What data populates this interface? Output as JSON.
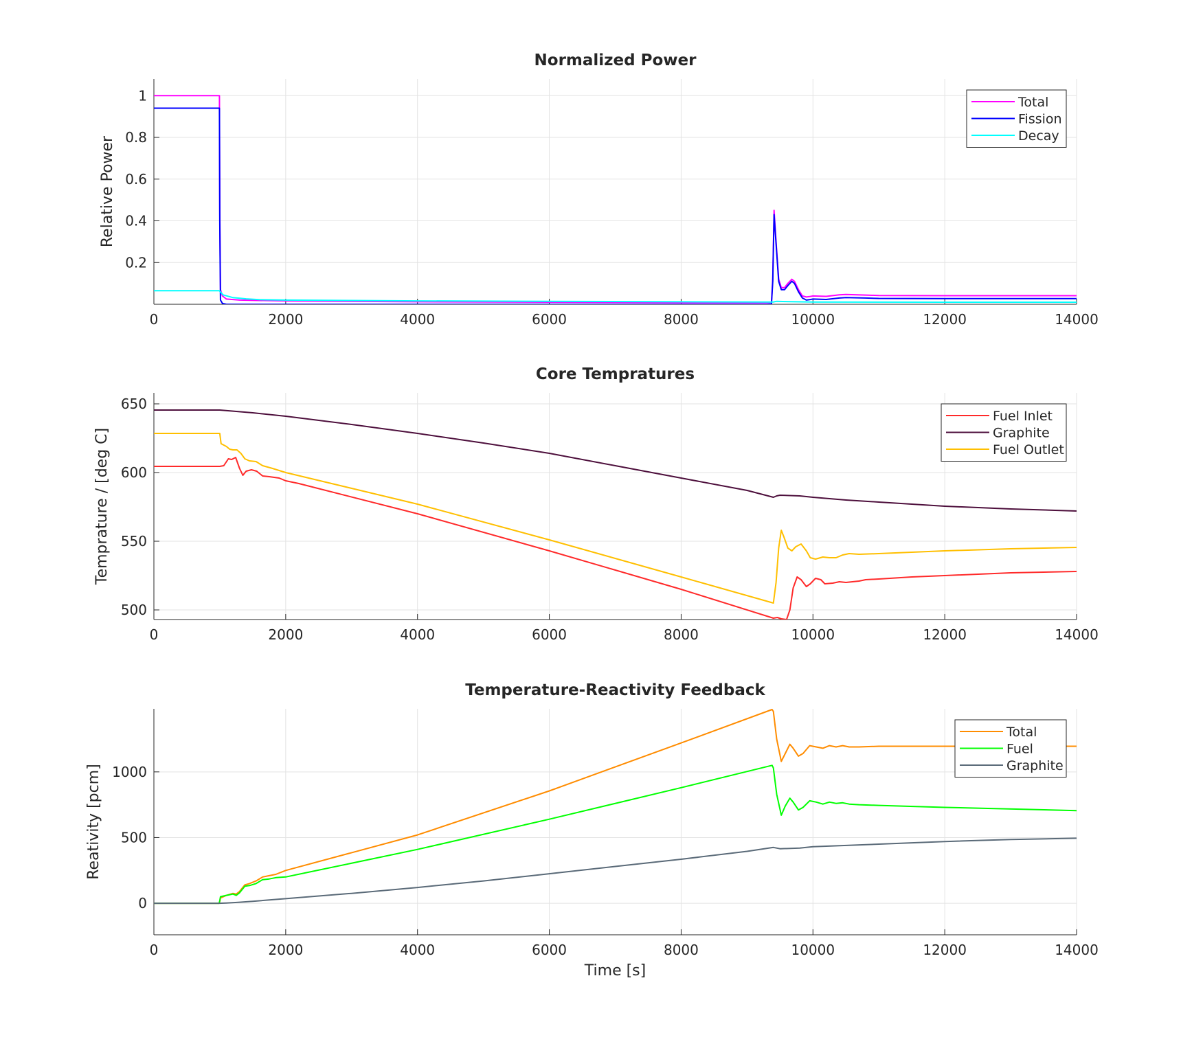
{
  "chart_data": [
    {
      "type": "line",
      "title": "Normalized Power",
      "xlabel": "",
      "ylabel": "Relative Power",
      "xlim": [
        0,
        14000
      ],
      "ylim": [
        0,
        1.08
      ],
      "xticks": [
        0,
        2000,
        4000,
        6000,
        8000,
        10000,
        12000,
        14000
      ],
      "yticks": [
        0.2,
        0.4,
        0.6,
        0.8,
        1
      ],
      "grid": true,
      "legend": "top-right",
      "series": [
        {
          "name": "Total",
          "color": "#ff00ff",
          "x": [
            0,
            995,
            1000,
            1010,
            1040,
            1100,
            1300,
            1600,
            2000,
            4000,
            6000,
            8000,
            9300,
            9370,
            9390,
            9410,
            9440,
            9480,
            9520,
            9570,
            9620,
            9680,
            9720,
            9780,
            9840,
            9900,
            9950,
            10000,
            10200,
            10400,
            10500,
            10800,
            11000,
            12000,
            13000,
            14000
          ],
          "y": [
            1.0,
            1.0,
            0.45,
            0.07,
            0.04,
            0.025,
            0.02,
            0.018,
            0.016,
            0.012,
            0.01,
            0.008,
            0.008,
            0.01,
            0.12,
            0.45,
            0.3,
            0.12,
            0.08,
            0.08,
            0.1,
            0.12,
            0.11,
            0.07,
            0.04,
            0.035,
            0.037,
            0.04,
            0.038,
            0.045,
            0.047,
            0.044,
            0.042,
            0.041,
            0.041,
            0.041
          ]
        },
        {
          "name": "Fission",
          "color": "#0000ff",
          "x": [
            0,
            995,
            1000,
            1010,
            1040,
            1100,
            1300,
            2000,
            4000,
            6000,
            8000,
            9300,
            9370,
            9390,
            9410,
            9440,
            9480,
            9520,
            9570,
            9620,
            9680,
            9720,
            9780,
            9840,
            9900,
            9950,
            10000,
            10200,
            10400,
            10500,
            10800,
            11000,
            12000,
            13000,
            14000
          ],
          "y": [
            0.94,
            0.94,
            0.4,
            0.02,
            0.004,
            0.0,
            0.0,
            0.0,
            0.0,
            0.0,
            0.0,
            0.0,
            0.002,
            0.11,
            0.43,
            0.29,
            0.11,
            0.07,
            0.07,
            0.09,
            0.11,
            0.1,
            0.06,
            0.03,
            0.02,
            0.022,
            0.025,
            0.023,
            0.03,
            0.032,
            0.03,
            0.028,
            0.027,
            0.027,
            0.027
          ]
        },
        {
          "name": "Decay",
          "color": "#00ffff",
          "x": [
            0,
            995,
            1000,
            1050,
            1200,
            1400,
            1600,
            2000,
            3000,
            4000,
            6000,
            8000,
            9400,
            9450,
            9600,
            10000,
            12000,
            14000
          ],
          "y": [
            0.065,
            0.065,
            0.063,
            0.045,
            0.032,
            0.026,
            0.022,
            0.02,
            0.018,
            0.016,
            0.014,
            0.012,
            0.011,
            0.014,
            0.013,
            0.011,
            0.01,
            0.01
          ]
        }
      ]
    },
    {
      "type": "line",
      "title": "Core Tempratures",
      "xlabel": "",
      "ylabel": "Temprature / [deg C]",
      "xlim": [
        0,
        14000
      ],
      "ylim": [
        493,
        658
      ],
      "xticks": [
        0,
        2000,
        4000,
        6000,
        8000,
        10000,
        12000,
        14000
      ],
      "yticks": [
        500,
        550,
        600,
        650
      ],
      "grid": true,
      "legend": "top-right",
      "series": [
        {
          "name": "Fuel Inlet",
          "color": "#ff2a2a",
          "x": [
            0,
            1000,
            1060,
            1130,
            1180,
            1240,
            1300,
            1350,
            1400,
            1480,
            1560,
            1650,
            1750,
            1900,
            2000,
            2200,
            4000,
            6000,
            8000,
            9400,
            9460,
            9520,
            9600,
            9650,
            9700,
            9760,
            9820,
            9900,
            9960,
            10040,
            10120,
            10180,
            10300,
            10400,
            10500,
            10600,
            10700,
            10800,
            11000,
            11500,
            12000,
            13000,
            14000
          ],
          "y": [
            604.5,
            604.5,
            605,
            610,
            609.5,
            611,
            603,
            598,
            601,
            602,
            601,
            597.5,
            597,
            596,
            594,
            592,
            570,
            543,
            515,
            494,
            494.5,
            493.5,
            493,
            500,
            516,
            524,
            522,
            517,
            519,
            523,
            522,
            519,
            519.5,
            520.5,
            520,
            520.5,
            521,
            522,
            522.5,
            524,
            525,
            527,
            528
          ]
        },
        {
          "name": "Graphite",
          "color": "#4d0f3c",
          "x": [
            0,
            1000,
            1500,
            2000,
            3000,
            4000,
            5000,
            6000,
            7000,
            8000,
            9000,
            9400,
            9450,
            9500,
            9800,
            10000,
            10500,
            11000,
            12000,
            13000,
            14000
          ],
          "y": [
            645.5,
            645.5,
            643.5,
            641,
            635,
            628.5,
            621.5,
            614,
            605,
            596,
            587,
            582,
            583,
            583.5,
            583,
            582,
            580,
            578.5,
            575.5,
            573.5,
            572
          ]
        },
        {
          "name": "Fuel Outlet",
          "color": "#ffbf00",
          "x": [
            0,
            1000,
            1020,
            1100,
            1150,
            1200,
            1260,
            1320,
            1380,
            1450,
            1550,
            1650,
            1800,
            2000,
            4000,
            6000,
            8000,
            9400,
            9440,
            9480,
            9520,
            9560,
            9620,
            9680,
            9740,
            9820,
            9900,
            9960,
            10040,
            10150,
            10250,
            10350,
            10450,
            10550,
            10700,
            11000,
            12000,
            13000,
            14000
          ],
          "y": [
            628.5,
            628.5,
            621,
            619,
            617,
            616.5,
            616.5,
            614,
            610,
            608.5,
            608,
            605,
            603,
            600,
            577,
            551,
            524,
            505,
            520,
            545,
            558,
            553,
            545,
            543,
            546,
            548,
            543,
            538,
            537,
            538.5,
            538,
            538,
            540,
            541,
            540.5,
            541,
            543,
            544.5,
            545.5
          ]
        }
      ]
    },
    {
      "type": "line",
      "title": "Temperature-Reactivity Feedback",
      "xlabel": "Time [s]",
      "ylabel": "Reativity [pcm]",
      "xlim": [
        0,
        14000
      ],
      "ylim": [
        -240,
        1480
      ],
      "xticks": [
        0,
        2000,
        4000,
        6000,
        8000,
        10000,
        12000,
        14000
      ],
      "yticks": [
        0,
        500,
        1000
      ],
      "grid": true,
      "legend": "top-right",
      "series": [
        {
          "name": "Total",
          "color": "#ff8c00",
          "x": [
            0,
            990,
            1000,
            1010,
            1100,
            1200,
            1250,
            1300,
            1380,
            1450,
            1550,
            1650,
            1750,
            1850,
            2000,
            4000,
            6000,
            8000,
            9380,
            9400,
            9450,
            9520,
            9580,
            9650,
            9700,
            9780,
            9850,
            9950,
            10050,
            10150,
            10250,
            10350,
            10450,
            10550,
            10700,
            11000,
            12000,
            14000
          ],
          "y": [
            0,
            0,
            15,
            40,
            60,
            75,
            70,
            90,
            140,
            150,
            170,
            200,
            210,
            220,
            250,
            520,
            855,
            1220,
            1475,
            1460,
            1250,
            1080,
            1140,
            1210,
            1180,
            1120,
            1140,
            1200,
            1190,
            1180,
            1200,
            1190,
            1200,
            1190,
            1190,
            1195,
            1195,
            1195
          ]
        },
        {
          "name": "Fuel",
          "color": "#00ff00",
          "x": [
            0,
            990,
            1000,
            1010,
            1100,
            1200,
            1250,
            1300,
            1380,
            1450,
            1550,
            1650,
            1750,
            1850,
            2000,
            4000,
            6000,
            8000,
            9380,
            9400,
            9450,
            9520,
            9580,
            9650,
            9700,
            9780,
            9850,
            9950,
            10050,
            10150,
            10250,
            10350,
            10450,
            10550,
            10700,
            11000,
            12000,
            14000
          ],
          "y": [
            0,
            0,
            20,
            50,
            60,
            70,
            60,
            80,
            130,
            135,
            150,
            180,
            185,
            195,
            200,
            410,
            640,
            880,
            1050,
            1030,
            830,
            670,
            740,
            800,
            770,
            710,
            730,
            780,
            770,
            755,
            770,
            760,
            765,
            755,
            750,
            745,
            730,
            705
          ]
        },
        {
          "name": "Graphite",
          "color": "#5a6a78",
          "x": [
            0,
            990,
            1100,
            1300,
            1500,
            2000,
            3000,
            4000,
            5000,
            6000,
            7000,
            8000,
            9000,
            9400,
            9500,
            9800,
            10000,
            11000,
            12000,
            13000,
            14000
          ],
          "y": [
            0,
            0,
            2,
            8,
            15,
            35,
            75,
            120,
            170,
            225,
            280,
            335,
            395,
            425,
            415,
            420,
            430,
            450,
            470,
            485,
            495
          ]
        }
      ]
    }
  ]
}
